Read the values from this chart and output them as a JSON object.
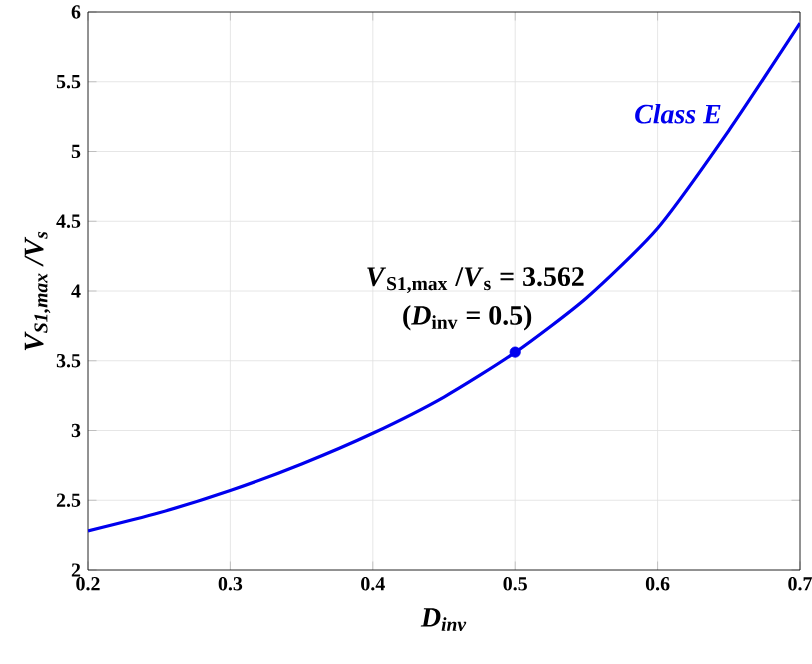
{
  "chart_data": {
    "type": "line",
    "xlabel": "D$_{inv}$",
    "ylabel": "V$_{S1,max}$ /V$_{s}$",
    "series": [
      {
        "name": "Class E",
        "color": "#0000ee",
        "x": [
          0.2,
          0.25,
          0.3,
          0.35,
          0.4,
          0.45,
          0.5,
          0.55,
          0.6,
          0.65,
          0.7
        ],
        "values": [
          2.28,
          2.41,
          2.57,
          2.76,
          2.98,
          3.24,
          3.56,
          3.95,
          4.45,
          5.15,
          5.92
        ]
      },
      {
        "type": "scatter",
        "color": "#0000ee",
        "marker": "circle",
        "x": [
          0.5
        ],
        "values": [
          3.562
        ]
      }
    ],
    "annotations": [
      {
        "text": "*V*$_{S1,max}$ /*V*$_{s}$ = 3.562",
        "x": 0.5,
        "y": 3.562
      },
      "(*D*$_{inv}$ = 0.5)"
    ],
    "xlim": [
      0.2,
      0.7
    ],
    "ylim": [
      2,
      6
    ],
    "xticks": [
      0.2,
      0.3,
      0.4,
      0.5,
      0.6,
      0.7
    ],
    "yticks": [
      2,
      2.5,
      3,
      3.5,
      4,
      4.5,
      5,
      5.5,
      6
    ],
    "grid": true,
    "legend": false,
    "marker": "none",
    "line_style": "solid"
  }
}
